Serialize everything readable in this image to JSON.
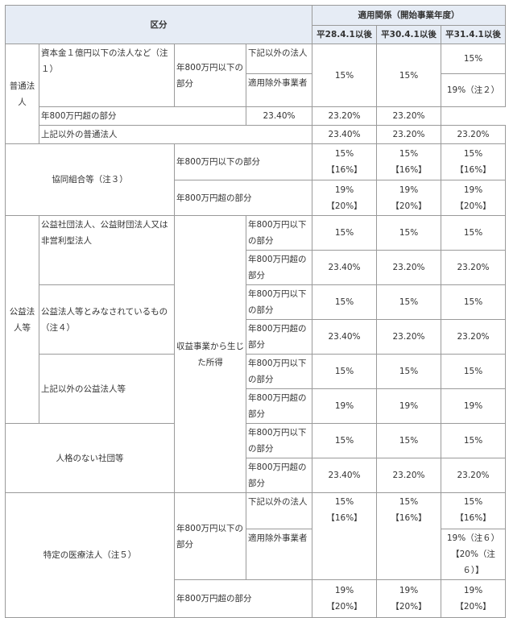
{
  "header": {
    "category": "区分",
    "applicable": "適用関係（開始事業年度）",
    "periods": [
      "平28.4.1以後",
      "平30.4.1以後",
      "平31.4.1以後"
    ]
  },
  "table": {
    "rows": [
      [
        "普通法人",
        "資本金１億円以下の法人など（注１）",
        "年800万円以下の部分",
        "下記以外の法人",
        "15%",
        "15%",
        "15%"
      ],
      [
        "適用除外事業者",
        "19%（注２）"
      ],
      [
        "年800万円超の部分",
        "23.40%",
        "23.20%",
        "23.20%"
      ],
      [
        "上記以外の普通法人",
        "23.40%",
        "23.20%",
        "23.20%"
      ],
      [
        "協同組合等（注３）",
        "年800万円以下の部分",
        [
          "15%",
          "【16%】"
        ],
        [
          "15%",
          "【16%】"
        ],
        [
          "15%",
          "【16%】"
        ]
      ],
      [
        "年800万円超の部分",
        [
          "19%",
          "【20%】"
        ],
        [
          "19%",
          "【20%】"
        ],
        [
          "19%",
          "【20%】"
        ]
      ],
      [
        "公益法人等",
        "公益社団法人、公益財団法人又は非営利型法人",
        "収益事業から生じた所得",
        "年800万円以下の部分",
        "15%",
        "15%",
        "15%"
      ],
      [
        "年800万円超の部分",
        "23.40%",
        "23.20%",
        "23.20%"
      ],
      [
        "公益法人等とみなされているもの（注４）",
        "年800万円以下の部分",
        "15%",
        "15%",
        "15%"
      ],
      [
        "年800万円超の部分",
        "23.40%",
        "23.20%",
        "23.20%"
      ],
      [
        "上記以外の公益法人等",
        "年800万円以下の部分",
        "15%",
        "15%",
        "15%"
      ],
      [
        "年800万円超の部分",
        "19%",
        "19%",
        "19%"
      ],
      [
        "人格のない社団等",
        "年800万円以下の部分",
        "15%",
        "15%",
        "15%"
      ],
      [
        "年800万円超の部分",
        "23.40%",
        "23.20%",
        "23.20%"
      ],
      [
        "特定の医療法人（注５）",
        "年800万円以下の部分",
        "下記以外の法人",
        [
          "15%",
          "【16%】"
        ],
        [
          "15%",
          "【16%】"
        ],
        [
          "15%",
          "【16%】"
        ]
      ],
      [
        "適用除外事業者",
        [
          "19%（注６）",
          "【20%（注６）】"
        ]
      ],
      [
        "年800万円超の部分",
        [
          "19%",
          "【20%】"
        ],
        [
          "19%",
          "【20%】"
        ],
        [
          "19%",
          "【20%】"
        ]
      ]
    ]
  }
}
